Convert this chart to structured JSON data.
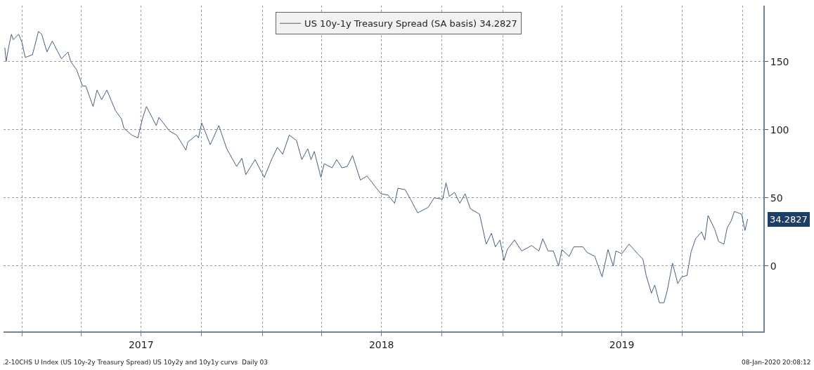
{
  "chart_data": {
    "type": "line",
    "x": [
      "2016-12-06",
      "2016-12-08",
      "2016-12-12",
      "2016-12-16",
      "2016-12-19",
      "2016-12-27",
      "2017-01-01",
      "2017-01-06",
      "2017-01-17",
      "2017-01-26",
      "2017-01-31",
      "2017-02-08",
      "2017-02-16",
      "2017-03-02",
      "2017-03-12",
      "2017-03-16",
      "2017-03-25",
      "2017-04-03",
      "2017-04-08",
      "2017-04-19",
      "2017-04-25",
      "2017-05-02",
      "2017-05-10",
      "2017-05-23",
      "2017-06-01",
      "2017-06-05",
      "2017-06-17",
      "2017-06-26",
      "2017-07-03",
      "2017-07-09",
      "2017-07-24",
      "2017-07-28",
      "2017-08-13",
      "2017-08-24",
      "2017-09-07",
      "2017-09-10",
      "2017-09-23",
      "2017-09-26",
      "2017-10-01",
      "2017-10-14",
      "2017-10-27",
      "2017-11-08",
      "2017-11-23",
      "2017-12-01",
      "2017-12-07",
      "2017-12-21",
      "2018-01-04",
      "2018-01-15",
      "2018-01-24",
      "2018-02-01",
      "2018-02-11",
      "2018-02-22",
      "2018-03-02",
      "2018-03-11",
      "2018-03-16",
      "2018-03-21",
      "2018-03-31",
      "2018-04-05",
      "2018-04-17",
      "2018-04-24",
      "2018-05-02",
      "2018-05-10",
      "2018-05-18",
      "2018-05-30",
      "2018-06-09",
      "2018-06-30",
      "2018-07-11",
      "2018-07-21",
      "2018-07-26",
      "2018-08-06",
      "2018-08-15",
      "2018-08-25",
      "2018-09-10",
      "2018-09-19",
      "2018-10-02",
      "2018-10-07",
      "2018-10-12",
      "2018-10-20",
      "2018-10-28",
      "2018-11-05",
      "2018-11-13",
      "2018-11-27",
      "2018-12-07",
      "2018-12-15",
      "2018-12-21",
      "2018-12-28",
      "2019-01-03",
      "2019-01-08",
      "2019-01-19",
      "2019-01-30",
      "2019-02-14",
      "2019-02-25",
      "2019-03-03",
      "2019-03-11",
      "2019-03-13",
      "2019-03-19",
      "2019-03-27",
      "2019-04-01",
      "2019-04-12",
      "2019-04-19",
      "2019-05-03",
      "2019-05-09",
      "2019-05-21",
      "2019-06-01",
      "2019-06-10",
      "2019-06-18",
      "2019-06-22",
      "2019-07-01",
      "2019-07-12",
      "2019-07-25",
      "2019-08-02",
      "2019-08-07",
      "2019-08-15",
      "2019-08-20",
      "2019-08-27",
      "2019-09-03",
      "2019-09-08",
      "2019-09-16",
      "2019-09-24",
      "2019-09-30",
      "2019-10-08",
      "2019-10-14",
      "2019-10-21",
      "2019-10-30",
      "2019-11-04",
      "2019-11-09",
      "2019-11-19",
      "2019-11-25",
      "2019-12-03",
      "2019-12-08",
      "2019-12-14",
      "2019-12-19",
      "2019-12-30",
      "2020-01-04",
      "2020-01-08"
    ],
    "series": [
      {
        "name": "US 10y-1y Treasury Spread (SA basis) 34.2827",
        "color": "#44607f",
        "values": [
          160,
          150,
          161,
          170,
          166,
          170,
          164,
          153,
          155,
          172,
          170,
          157,
          165,
          152,
          157,
          150,
          144,
          132,
          132,
          117,
          129,
          122,
          129,
          114,
          108,
          101,
          96,
          94,
          108,
          117,
          103,
          109,
          99,
          96,
          85,
          91,
          96,
          94,
          105,
          89,
          103,
          86,
          73,
          79,
          67,
          78,
          65,
          78,
          87,
          82,
          96,
          92,
          78,
          86,
          78,
          84,
          65,
          75,
          72,
          78,
          72,
          73,
          81,
          63,
          66,
          53,
          52,
          46,
          57,
          56,
          48,
          39,
          43,
          50,
          49,
          61,
          51,
          54,
          46,
          53,
          42,
          38,
          16,
          24,
          14,
          19,
          4,
          12,
          19,
          11,
          15,
          11,
          20,
          11,
          11,
          11,
          0,
          12,
          7,
          14,
          14,
          10,
          7,
          -8,
          12,
          0,
          11,
          9,
          16,
          9,
          5,
          -7,
          -20,
          -14,
          -27,
          -27,
          -18,
          2,
          -13,
          -8,
          -7,
          10,
          20,
          25,
          19,
          37,
          27,
          18,
          16,
          28,
          33,
          40,
          38,
          26,
          34.2827
        ]
      }
    ],
    "xlim": [
      "2016-12-04",
      "2020-02-01"
    ],
    "xticks": [
      {
        "value": "2017-01-01",
        "label": null
      },
      {
        "value": "2017-04-01",
        "label": null
      },
      {
        "value": "2017-07-01",
        "label": "2017"
      },
      {
        "value": "2017-10-01",
        "label": null
      },
      {
        "value": "2018-01-01",
        "label": null
      },
      {
        "value": "2018-04-01",
        "label": null
      },
      {
        "value": "2018-07-01",
        "label": "2018"
      },
      {
        "value": "2018-10-01",
        "label": null
      },
      {
        "value": "2019-01-01",
        "label": null
      },
      {
        "value": "2019-04-01",
        "label": null
      },
      {
        "value": "2019-07-01",
        "label": "2019"
      },
      {
        "value": "2019-10-01",
        "label": null
      },
      {
        "value": "2020-01-01",
        "label": null
      }
    ],
    "ylim": [
      -48,
      191
    ],
    "yticks": [
      0,
      50,
      100,
      150
    ],
    "grid": true,
    "legend": "top",
    "line_style": "solid",
    "annotations": [
      "34.2827",
      ".2-10CHS U Index (US 10y-2y Treasury Spread) US 10y2y and 10y1y curvs  Daily 03",
      "08-Jan-2020 20:08:12"
    ]
  }
}
